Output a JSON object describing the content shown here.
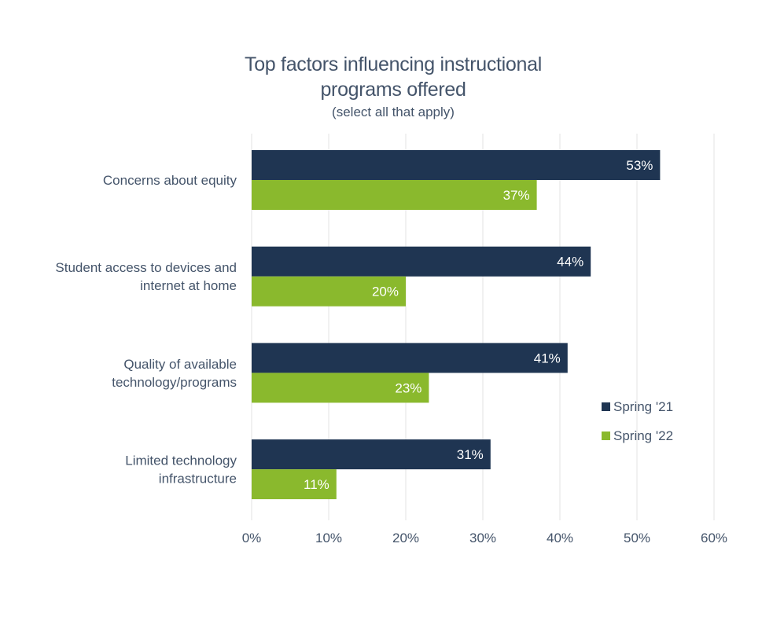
{
  "chart_data": {
    "type": "bar",
    "orientation": "horizontal",
    "title": "Top factors influencing instructional programs offered",
    "title_lines": [
      "Top factors influencing instructional",
      "programs offered"
    ],
    "subtitle": "(select all that apply)",
    "categories": [
      [
        "Concerns about equity"
      ],
      [
        "Student access to devices and",
        "internet at home"
      ],
      [
        "Quality of available",
        "technology/programs"
      ],
      [
        "Limited technology",
        "infrastructure"
      ]
    ],
    "series": [
      {
        "name": "Spring '21",
        "color": "#1f3552",
        "values": [
          53,
          44,
          41,
          31
        ]
      },
      {
        "name": "Spring '22",
        "color": "#8ab92d",
        "values": [
          37,
          20,
          23,
          11
        ]
      }
    ],
    "value_suffix": "%",
    "xlim": [
      0,
      60
    ],
    "xticks": [
      0,
      10,
      20,
      30,
      40,
      50,
      60
    ],
    "xtick_labels": [
      "0%",
      "10%",
      "20%",
      "30%",
      "40%",
      "50%",
      "60%"
    ],
    "grid": true,
    "legend_position": "right"
  },
  "colors": {
    "text": "#44546a",
    "grid": "#e3e3e3",
    "label_on_bar": "#ffffff"
  }
}
